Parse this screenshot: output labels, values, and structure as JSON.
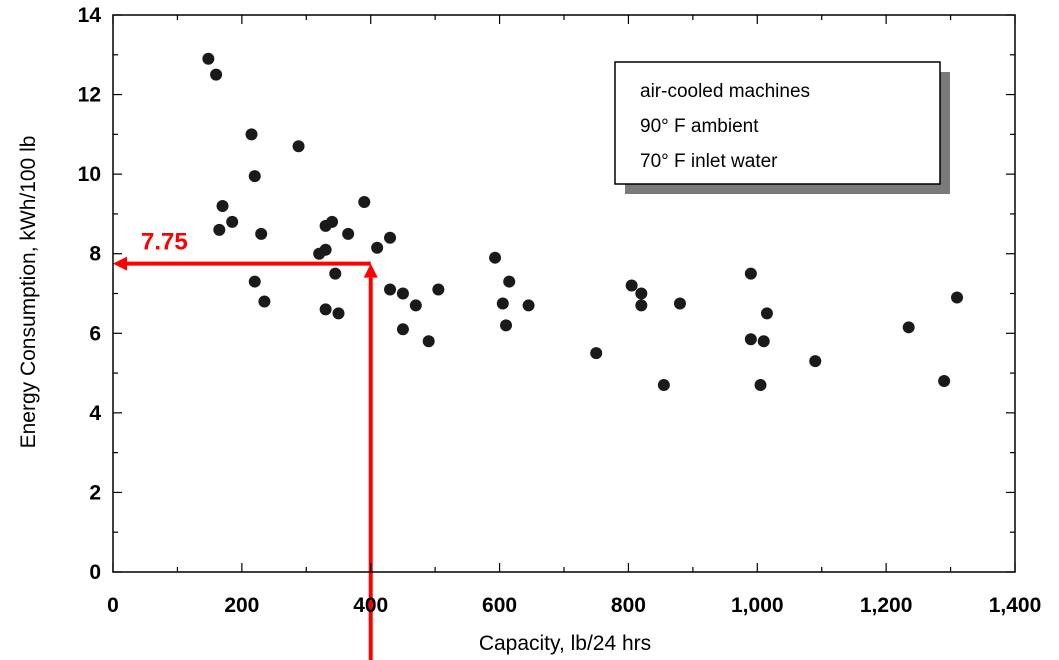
{
  "chart_data": {
    "type": "scatter",
    "title": "",
    "xlabel": "Capacity, lb/24 hrs",
    "ylabel": "Energy Consumption, kWh/100 lb",
    "xlim": [
      0,
      1400
    ],
    "ylim": [
      0,
      14
    ],
    "x_ticks": [
      0,
      200,
      400,
      600,
      800,
      1000,
      1200,
      1400
    ],
    "x_tick_labels": [
      "0",
      "200",
      "400",
      "600",
      "800",
      "1,000",
      "1,200",
      "1,400"
    ],
    "y_ticks": [
      0,
      2,
      4,
      6,
      8,
      10,
      12,
      14
    ],
    "y_tick_labels": [
      "0",
      "2",
      "4",
      "6",
      "8",
      "10",
      "12",
      "14"
    ],
    "grid": false,
    "legend": {
      "placement": "top-right",
      "lines": [
        "air-cooled machines",
        "90° F ambient",
        "70° F inlet water"
      ]
    },
    "series": [
      {
        "points": [
          [
            148,
            12.9
          ],
          [
            160,
            12.5
          ],
          [
            170,
            9.2
          ],
          [
            165,
            8.6
          ],
          [
            185,
            8.8
          ],
          [
            215,
            11.0
          ],
          [
            220,
            9.95
          ],
          [
            230,
            8.5
          ],
          [
            220,
            7.3
          ],
          [
            235,
            6.8
          ],
          [
            288,
            10.7
          ],
          [
            320,
            8.0
          ],
          [
            330,
            8.1
          ],
          [
            330,
            8.7
          ],
          [
            340,
            8.8
          ],
          [
            345,
            7.5
          ],
          [
            330,
            6.6
          ],
          [
            350,
            6.5
          ],
          [
            365,
            8.5
          ],
          [
            390,
            9.3
          ],
          [
            410,
            8.15
          ],
          [
            430,
            8.4
          ],
          [
            430,
            7.1
          ],
          [
            450,
            7.0
          ],
          [
            470,
            6.7
          ],
          [
            450,
            6.1
          ],
          [
            490,
            5.8
          ],
          [
            505,
            7.1
          ],
          [
            593,
            7.9
          ],
          [
            605,
            6.75
          ],
          [
            615,
            7.3
          ],
          [
            610,
            6.2
          ],
          [
            645,
            6.7
          ],
          [
            750,
            5.5
          ],
          [
            805,
            7.2
          ],
          [
            820,
            7.0
          ],
          [
            820,
            6.7
          ],
          [
            855,
            4.7
          ],
          [
            880,
            6.75
          ],
          [
            990,
            7.5
          ],
          [
            990,
            5.85
          ],
          [
            1005,
            4.7
          ],
          [
            1010,
            5.8
          ],
          [
            1015,
            6.5
          ],
          [
            1090,
            5.3
          ],
          [
            1235,
            6.15
          ],
          [
            1290,
            4.8
          ],
          [
            1310,
            6.9
          ]
        ]
      }
    ],
    "annotations": [
      {
        "text": "7.75",
        "x": 400,
        "y": 7.75,
        "color": "#ff0000"
      }
    ]
  }
}
